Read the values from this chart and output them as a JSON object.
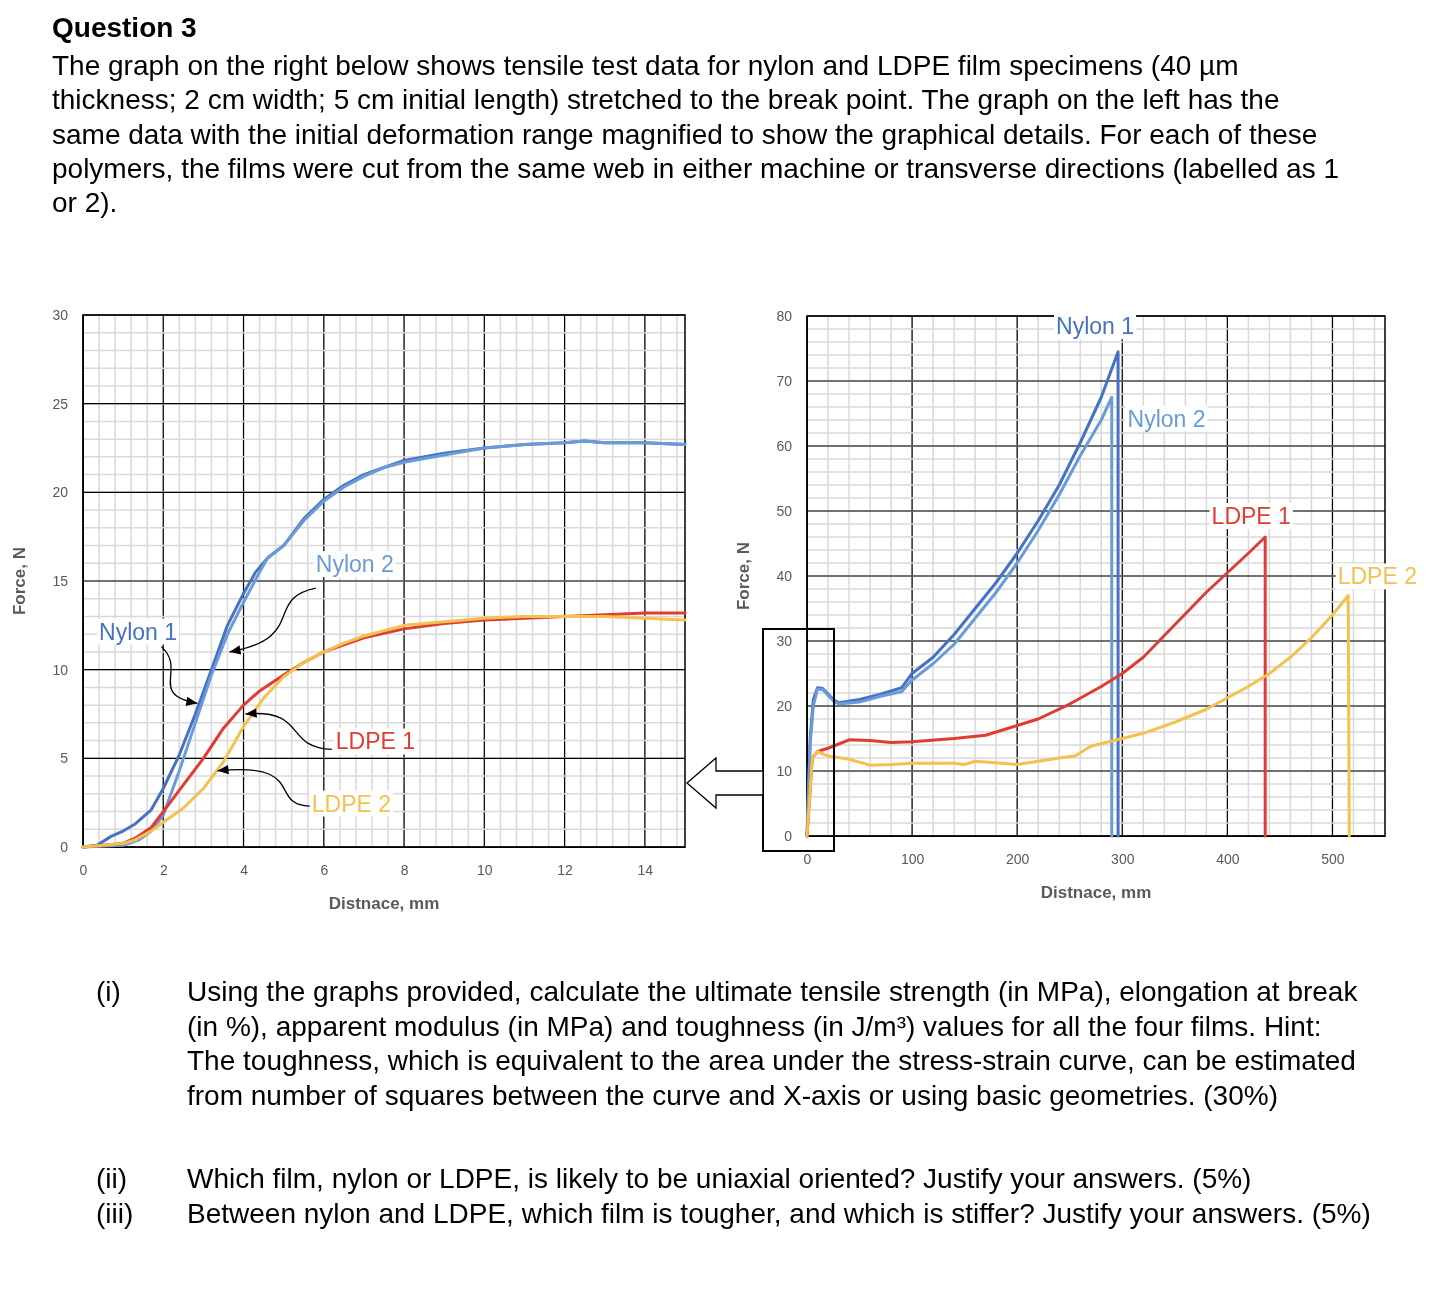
{
  "chart_data": [
    {
      "type": "line",
      "title": "Question 3",
      "annotations": [
        "The graph on the right below shows tensile test data for nylon and LDPE film specimens (40 µm thickness; 2 cm width; 5 cm initial length) stretched to the break point. The graph on the left has the same data with the initial deformation range magnified to show the graphical details. For each of these polymers, the films were cut from the same web in either machine or transverse directions (labelled as 1 or 2)."
      ],
      "xlabel": "Distnace, mm",
      "ylabel": "Force, N",
      "xlim": [
        0,
        15
      ],
      "xticks": [
        0,
        2,
        4,
        6,
        8,
        10,
        12,
        14
      ],
      "ylim": [
        0,
        30
      ],
      "yticks": [
        0,
        5,
        10,
        15,
        20,
        25,
        30
      ],
      "grid": true,
      "legend": false,
      "series": [
        {
          "name": "Nylon 1",
          "color": "#4472c4",
          "x": [
            0,
            0.35,
            0.7,
            1,
            1.3,
            1.7,
            2,
            2.4,
            2.8,
            3.2,
            3.6,
            4,
            4.3,
            4.6,
            5,
            5.5,
            6,
            6.5,
            7,
            7.5,
            8,
            9,
            10,
            11,
            12,
            12.5,
            13,
            14,
            15
          ],
          "values": [
            0,
            0.1,
            0.6,
            0.9,
            1.3,
            2.1,
            3.3,
            5.2,
            7.5,
            10,
            12.5,
            14.3,
            15.5,
            16.3,
            17,
            18.5,
            19.6,
            20.4,
            21,
            21.4,
            21.8,
            22.2,
            22.5,
            22.7,
            22.8,
            22.9,
            22.8,
            22.8,
            22.7
          ]
        },
        {
          "name": "Nylon 2",
          "color": "#6a9bd8",
          "x": [
            0,
            1,
            1.4,
            1.7,
            2,
            2.4,
            2.8,
            3.2,
            3.6,
            4,
            4.4,
            4.6,
            5,
            5.5,
            6,
            6.5,
            7,
            7.5,
            8,
            9,
            10,
            11,
            12,
            12.5,
            13,
            14,
            15
          ],
          "values": [
            0,
            0.1,
            0.4,
            0.9,
            1.8,
            4.3,
            7,
            9.7,
            12,
            13.8,
            15.5,
            16.3,
            17,
            18.4,
            19.5,
            20.3,
            20.9,
            21.4,
            21.7,
            22.1,
            22.5,
            22.7,
            22.8,
            22.9,
            22.8,
            22.8,
            22.7
          ]
        },
        {
          "name": "LDPE 1",
          "color": "#e03c31",
          "x": [
            0,
            0.5,
            1,
            1.3,
            1.7,
            2,
            2.5,
            3,
            3.5,
            4,
            4.4,
            5,
            5.5,
            6,
            6.5,
            7,
            8,
            9,
            10,
            11,
            12,
            13,
            14,
            15
          ],
          "values": [
            0,
            0.1,
            0.2,
            0.5,
            1.1,
            2,
            3.5,
            5,
            6.7,
            8,
            8.8,
            9.7,
            10.4,
            11,
            11.4,
            11.8,
            12.3,
            12.6,
            12.8,
            12.9,
            13,
            13.1,
            13.2,
            13.2
          ]
        },
        {
          "name": "LDPE 2",
          "color": "#f2c14e",
          "x": [
            0,
            0.5,
            1,
            1.3,
            1.7,
            2,
            2.5,
            3,
            3.5,
            4,
            4.5,
            5,
            5.5,
            6,
            6.5,
            7,
            8,
            9,
            10,
            11,
            12,
            13,
            14,
            15
          ],
          "values": [
            0,
            0.1,
            0.2,
            0.4,
            0.9,
            1.4,
            2.2,
            3.3,
            4.8,
            6.8,
            8.4,
            9.6,
            10.4,
            11,
            11.5,
            11.9,
            12.5,
            12.7,
            12.9,
            13,
            13,
            13,
            12.9,
            12.8
          ]
        }
      ]
    },
    {
      "type": "line",
      "annotations": [
        "(i)",
        "Using the graphs provided, calculate the ultimate tensile strength (in MPa), elongation at break (in %), apparent modulus (in MPa) and toughness (in J/m³) values for all the four films. Hint: The toughness, which is equivalent to the area under the stress-strain curve, can be estimated from number of squares between the curve and X-axis or using basic geometries. (30%)",
        "(ii)",
        "Which film, nylon or LDPE, is likely to be uniaxial oriented? Justify your answers. (5%)",
        "(iii)",
        "Between nylon and LDPE, which film is tougher, and which is stiffer? Justify your answers. (5%)"
      ],
      "xlabel": "Distnace, mm",
      "ylabel": "Force, N",
      "xlim": [
        0,
        550
      ],
      "xticks": [
        0,
        100,
        200,
        300,
        400,
        500
      ],
      "ylim": [
        0,
        80
      ],
      "yticks": [
        0,
        10,
        20,
        30,
        40,
        50,
        60,
        70,
        80
      ],
      "grid": true,
      "legend": false,
      "series": [
        {
          "name": "Nylon 1",
          "color": "#4472c4",
          "x": [
            0,
            3,
            6,
            10,
            15,
            25,
            30,
            50,
            70,
            90,
            100,
            120,
            140,
            160,
            180,
            200,
            220,
            240,
            260,
            280,
            296,
            296
          ],
          "values": [
            0,
            15,
            21,
            22.8,
            22.7,
            21,
            20.5,
            21,
            21.8,
            22.8,
            25,
            27.5,
            31,
            35,
            39,
            43.5,
            48.5,
            54,
            60.5,
            67.5,
            74.5,
            0
          ]
        },
        {
          "name": "Nylon 2",
          "color": "#6a9bd8",
          "x": [
            0,
            3,
            6,
            10,
            15,
            25,
            30,
            50,
            70,
            90,
            100,
            120,
            140,
            160,
            180,
            200,
            220,
            240,
            260,
            280,
            290,
            290
          ],
          "values": [
            0,
            14,
            20,
            22.6,
            22.5,
            20.8,
            20.3,
            20.6,
            21.5,
            22.2,
            24,
            26.5,
            29.5,
            33.5,
            37.5,
            42,
            47,
            52.5,
            58.5,
            64,
            67.5,
            0
          ]
        },
        {
          "name": "LDPE 1",
          "color": "#e03c31",
          "x": [
            0,
            5,
            10,
            20,
            40,
            60,
            80,
            100,
            140,
            170,
            200,
            220,
            250,
            280,
            300,
            320,
            350,
            380,
            400,
            420,
            436,
            436
          ],
          "values": [
            0,
            12,
            13,
            13.5,
            14.8,
            14.7,
            14.4,
            14.5,
            15,
            15.5,
            17,
            18,
            20.3,
            23,
            25,
            27.5,
            32.5,
            37.5,
            40.5,
            43.5,
            46,
            0
          ]
        },
        {
          "name": "LDPE 2",
          "color": "#f2c14e",
          "x": [
            0,
            5,
            10,
            20,
            40,
            60,
            80,
            100,
            140,
            150,
            160,
            200,
            240,
            255,
            270,
            300,
            320,
            350,
            380,
            420,
            440,
            460,
            480,
            500,
            515,
            516
          ],
          "values": [
            0,
            12,
            13,
            12.3,
            11.8,
            10.9,
            11,
            11.2,
            11.2,
            11,
            11.5,
            11,
            12,
            12.3,
            13.8,
            15,
            15.8,
            17.5,
            19.5,
            23,
            25,
            27.5,
            30.5,
            34,
            37,
            0
          ]
        }
      ]
    }
  ]
}
